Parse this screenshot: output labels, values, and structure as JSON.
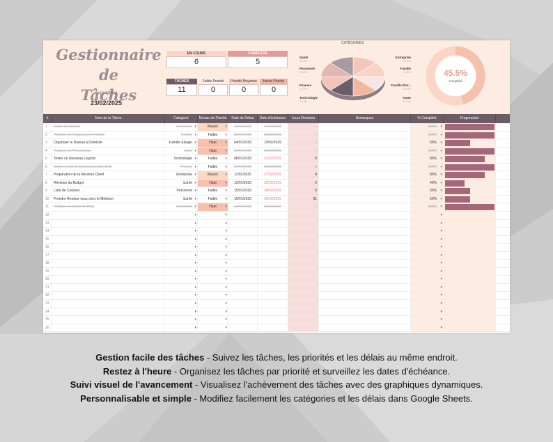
{
  "dashboard": {
    "title_line1": "Gestionnaire de",
    "title_line2": "Tâches",
    "today_label": "Aujourd'hui :",
    "today_value": "23/02/2025",
    "en_cours_label": "EN COURS",
    "en_cours_value": "6",
    "complete_label": "COMPLÉTÉ",
    "complete_value": "5",
    "total_label": "TÂCHES TOTALES",
    "total_value": "11",
    "faible_label": "Faible Priorité",
    "faible_value": "0",
    "moyenne_label": "Priorité Moyenne",
    "moyenne_value": "0",
    "haute_label": "Haute Priorité",
    "haute_value": "0",
    "completion_pct": "45.5%",
    "completion_label": "Complété",
    "completion_fraction": 0.455
  },
  "categories_chart": {
    "title": "CATÉGORIES",
    "items": [
      {
        "label": "Santé",
        "pct": "12.5%"
      },
      {
        "label": "Entreprise",
        "pct": "12.5%"
      },
      {
        "label": "Personnel",
        "pct": "12.5%"
      },
      {
        "label": "Famille",
        "pct": "12.5%"
      },
      {
        "label": "Finance",
        "pct": "12.5%"
      },
      {
        "label": "Famille Élar...",
        "pct": "12.5%"
      },
      {
        "label": "Technologie",
        "pct": "12.5%"
      },
      {
        "label": "Autre",
        "pct": "12.5%"
      }
    ],
    "colors": [
      "#f3c8bb",
      "#fbd3c3",
      "#f8e6e2",
      "#f5b69f",
      "#6c5e68",
      "#f4c3b9",
      "#e3b7b1",
      "#a89a9f"
    ]
  },
  "table": {
    "headers": [
      "#",
      "Nom de la Tâche",
      "Catégorie",
      "Niveau de Priorité",
      "Date de Début",
      "Date d'échéance",
      "Jours Restants",
      "Remarques",
      "% Complété",
      "Progression"
    ],
    "rows": [
      {
        "n": "1",
        "name": "Étude de Marché",
        "cat": "Entreprise",
        "prio": "Moyen",
        "start": "10/01/2025",
        "due": "14/02/2025",
        "days": "-",
        "pct": "100%",
        "progress": 1.0,
        "done": true
      },
      {
        "n": "2",
        "name": "Planifier les Vacances en Famille",
        "cat": "Famille",
        "prio": "Faible",
        "start": "20/01/2025",
        "due": "10/02/2025",
        "days": "-",
        "pct": "100%",
        "progress": 1.0,
        "done": true
      },
      {
        "n": "3",
        "name": "Organiser le Bureau à Domicile",
        "cat": "Famille Élargie",
        "prio": "Haut",
        "start": "04/01/2025",
        "due": "19/02/2025",
        "days": "-",
        "pct": "50%",
        "progress": 0.5,
        "done": false
      },
      {
        "n": "4",
        "name": "Préparer la Présentation",
        "cat": "Autre",
        "prio": "Haut",
        "start": "01/02/2025",
        "due": "21/02/2025",
        "days": "-",
        "pct": "100%",
        "progress": 1.0,
        "done": true
      },
      {
        "n": "5",
        "name": "Tester un Nouveau Logiciel",
        "cat": "Technologie",
        "prio": "Faible",
        "start": "08/01/2025",
        "due": "23/02/2025",
        "days": "0",
        "pct": "80%",
        "progress": 0.8,
        "done": false
      },
      {
        "n": "6",
        "name": "Mettre à Jour le Contenu du Site Web",
        "cat": "Finance",
        "prio": "Faible",
        "start": "10/01/2025",
        "due": "25/02/2025",
        "days": "2",
        "pct": "100%",
        "progress": 1.0,
        "done": true
      },
      {
        "n": "7",
        "name": "Préparation de la Réunion Client",
        "cat": "Entreprise",
        "prio": "Moyen",
        "start": "11/01/2025",
        "due": "27/02/2025",
        "days": "4",
        "pct": "80%",
        "progress": 0.8,
        "done": false
      },
      {
        "n": "8",
        "name": "Révision du Budget",
        "cat": "Santé",
        "prio": "Haut",
        "start": "12/01/2025",
        "due": "25/02/2025",
        "days": "2",
        "pct": "40%",
        "progress": 0.4,
        "done": false
      },
      {
        "n": "9",
        "name": "Liste de Courses",
        "cat": "Personnel",
        "prio": "Faible",
        "start": "15/01/2025",
        "due": "28/02/2025",
        "days": "5",
        "pct": "50%",
        "progress": 0.5,
        "done": false
      },
      {
        "n": "10",
        "name": "Prendre Rendez-vous chez le Médecin",
        "cat": "Santé",
        "prio": "Faible",
        "start": "16/01/2025",
        "due": "26/03/2025",
        "days": "31",
        "pct": "50%",
        "progress": 0.5,
        "done": false
      },
      {
        "n": "11",
        "name": "Rédiger un Article de Blog",
        "cat": "Entreprise",
        "prio": "Haut",
        "start": "10/01/2025",
        "due": "19/02/2025",
        "days": "-",
        "pct": "100%",
        "progress": 1.0,
        "done": true
      }
    ],
    "empty_row_numbers": [
      "12",
      "13",
      "14",
      "15",
      "16",
      "17",
      "18",
      "19",
      "20",
      "21",
      "22",
      "23",
      "24",
      "25",
      "26"
    ]
  },
  "caption": [
    {
      "bold": "Gestion facile des tâches",
      "text": " - Suivez les tâches, les priorités et les délais au même endroit."
    },
    {
      "bold": "Restez à l'heure",
      "text": " - Organisez les tâches par priorité et surveillez les dates d'échéance."
    },
    {
      "bold": "Suivi visuel de l'avancement",
      "text": " - Visualisez l'achèvement des tâches avec des graphiques dynamiques."
    },
    {
      "bold": "Personnalisable et simple",
      "text": " - Modifiez facilement les catégories et les délais dans Google Sheets."
    }
  ]
}
